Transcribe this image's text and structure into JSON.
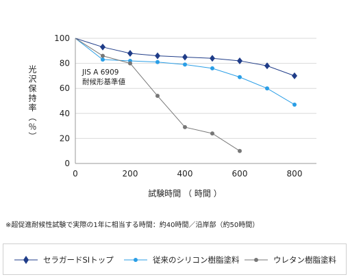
{
  "chart_data": {
    "type": "line",
    "xlabel": "試験時間 （ 時間 ）",
    "ylabel": "光沢保持率（％）",
    "x": [
      0,
      100,
      200,
      300,
      400,
      500,
      600,
      700,
      800
    ],
    "xticks": [
      0,
      200,
      400,
      600,
      800
    ],
    "yticks": [
      0,
      20,
      40,
      60,
      80,
      100
    ],
    "xlim": [
      0,
      880
    ],
    "ylim": [
      0,
      100
    ],
    "grid": "horizontal",
    "series": [
      {
        "name": "セラガードSIトップ",
        "color": "#1f3c88",
        "marker": "diamond",
        "x": [
          0,
          100,
          200,
          300,
          400,
          500,
          600,
          700,
          800
        ],
        "values": [
          100,
          93,
          88,
          86,
          85,
          84,
          82,
          78,
          70
        ]
      },
      {
        "name": "従来のシリコン樹脂塗料",
        "color": "#2a9ee6",
        "marker": "circle",
        "x": [
          0,
          100,
          200,
          300,
          400,
          500,
          600,
          700,
          800
        ],
        "values": [
          100,
          83,
          82,
          81,
          79,
          76,
          69,
          60,
          47
        ]
      },
      {
        "name": "ウレタン樹脂塗料",
        "color": "#777777",
        "marker": "circle",
        "x": [
          0,
          100,
          200,
          300,
          400,
          500,
          600
        ],
        "values": [
          100,
          86,
          80,
          54,
          29,
          24,
          10
        ]
      }
    ],
    "annotations": [
      "JIS A 6909",
      "耐候形基準値"
    ]
  },
  "note": "※超促進耐候性試験で実際の1年に相当する時間：約40時間／沿岸部（約50時間）",
  "legend_placement": "bottom"
}
